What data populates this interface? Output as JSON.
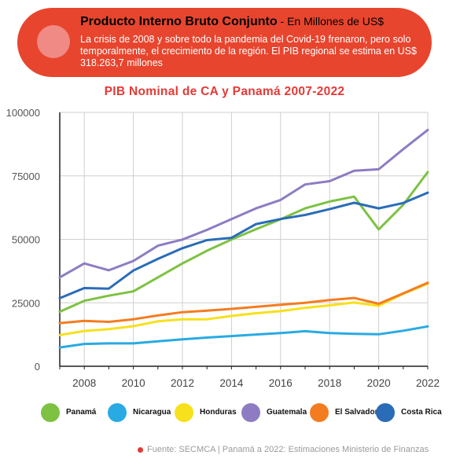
{
  "banner": {
    "title": "Producto Interno Bruto Conjunto",
    "title_suffix": " - En Millones de US$",
    "text": "La crisis de 2008 y sobre todo la pandemia del Covid-19 frenaron, pero solo temporalmente, el crecimiento de la región. El PIB regional se estima en US$ 318.263,7 millones",
    "color": "#e8452e"
  },
  "source": "Fuente: SECMCA | Panamá a 2022: Estimaciones Ministerio de Finanzas",
  "chart_data": {
    "type": "line",
    "title": "PIB Nominal  de CA y Panamá 2007-2022",
    "xlabel": "",
    "ylabel": "",
    "x": [
      2007,
      2008,
      2009,
      2010,
      2011,
      2012,
      2013,
      2014,
      2015,
      2016,
      2017,
      2018,
      2019,
      2020,
      2021,
      2022
    ],
    "xticks": [
      "2008",
      "2010",
      "2012",
      "2014",
      "2016",
      "2018",
      "2020",
      "2022"
    ],
    "yticks": [
      "0",
      "25000",
      "50000",
      "75000",
      "100000"
    ],
    "ylim": [
      0,
      100000
    ],
    "grid": true,
    "legend_position": "bottom",
    "series": [
      {
        "name": "Panamá",
        "color": "#7dc242",
        "values": [
          21500,
          25800,
          27800,
          29500,
          35000,
          40500,
          45500,
          49900,
          54000,
          57900,
          62200,
          64900,
          66800,
          53900,
          63600,
          76500
        ]
      },
      {
        "name": "Nicaragua",
        "color": "#29aae2",
        "values": [
          7400,
          8800,
          9000,
          9000,
          9800,
          10600,
          11300,
          11900,
          12500,
          13100,
          13800,
          13100,
          12800,
          12600,
          14000,
          15700
        ]
      },
      {
        "name": "Honduras",
        "color": "#f7e01c",
        "values": [
          12300,
          13900,
          14600,
          15800,
          17700,
          18500,
          18500,
          19800,
          20900,
          21700,
          23000,
          24000,
          25100,
          23800,
          28500,
          32500
        ]
      },
      {
        "name": "Guatemala",
        "color": "#8e7cc3",
        "values": [
          35000,
          40500,
          37800,
          41500,
          47500,
          49900,
          53700,
          58000,
          62200,
          65500,
          71600,
          72900,
          77000,
          77600,
          85500,
          93100
        ]
      },
      {
        "name": "El Salvador",
        "color": "#f47c20",
        "values": [
          17000,
          17900,
          17500,
          18500,
          20000,
          21300,
          21900,
          22600,
          23400,
          24200,
          25000,
          26100,
          26900,
          24600,
          28700,
          32900
        ]
      },
      {
        "name": "Costa Rica",
        "color": "#2a6cb8",
        "values": [
          26800,
          30800,
          30600,
          37700,
          42300,
          46500,
          49700,
          50600,
          56000,
          58000,
          59600,
          61900,
          64400,
          62200,
          64300,
          68400
        ]
      }
    ]
  }
}
